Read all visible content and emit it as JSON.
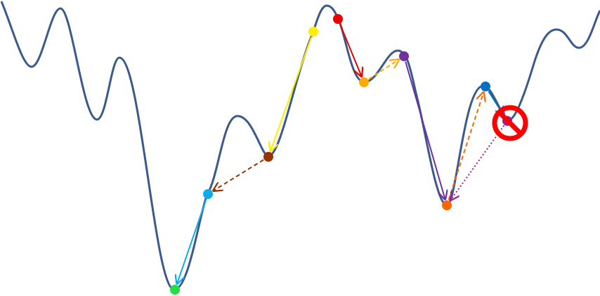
{
  "colors": {
    "background": "#ffffff",
    "curve": "#3a5a8c",
    "forbidden": "#ff0000"
  },
  "curve": {
    "name": "energy-landscape-curve"
  },
  "points": [
    {
      "id": "green",
      "color": "#22dd44"
    },
    {
      "id": "cyan",
      "color": "#11aaee"
    },
    {
      "id": "brown",
      "color": "#993300"
    },
    {
      "id": "yellow",
      "color": "#ffee00"
    },
    {
      "id": "red",
      "color": "#ee0000"
    },
    {
      "id": "orange-light",
      "color": "#ffaa00"
    },
    {
      "id": "purple",
      "color": "#7030a0"
    },
    {
      "id": "orange",
      "color": "#ff6600"
    },
    {
      "id": "blue",
      "color": "#0070c0"
    },
    {
      "id": "magenta",
      "color": "#a0208c"
    }
  ],
  "moves": [
    {
      "from": "red",
      "to": "orange-light",
      "color": "#ee0000",
      "style": "solid"
    },
    {
      "from": "orange-light",
      "to": "purple",
      "color": "#ffaa00",
      "style": "dashed"
    },
    {
      "from": "purple",
      "to": "orange",
      "color": "#7030a0",
      "style": "solid"
    },
    {
      "from": "orange",
      "to": "blue",
      "color": "#ff6600",
      "style": "dashed"
    },
    {
      "from": "blue",
      "to": "magenta",
      "color": "#0070c0",
      "style": "solid"
    },
    {
      "from": "magenta",
      "to": "orange",
      "color": "#a0208c",
      "style": "dotted"
    },
    {
      "from": "yellow",
      "to": "brown",
      "color": "#ffee00",
      "style": "solid"
    },
    {
      "from": "brown",
      "to": "cyan",
      "color": "#993300",
      "style": "dashed"
    },
    {
      "from": "cyan",
      "to": "green",
      "color": "#11aaee",
      "style": "solid"
    }
  ],
  "forbidden_marker": {
    "at": "magenta",
    "icon": "prohibited-icon"
  }
}
